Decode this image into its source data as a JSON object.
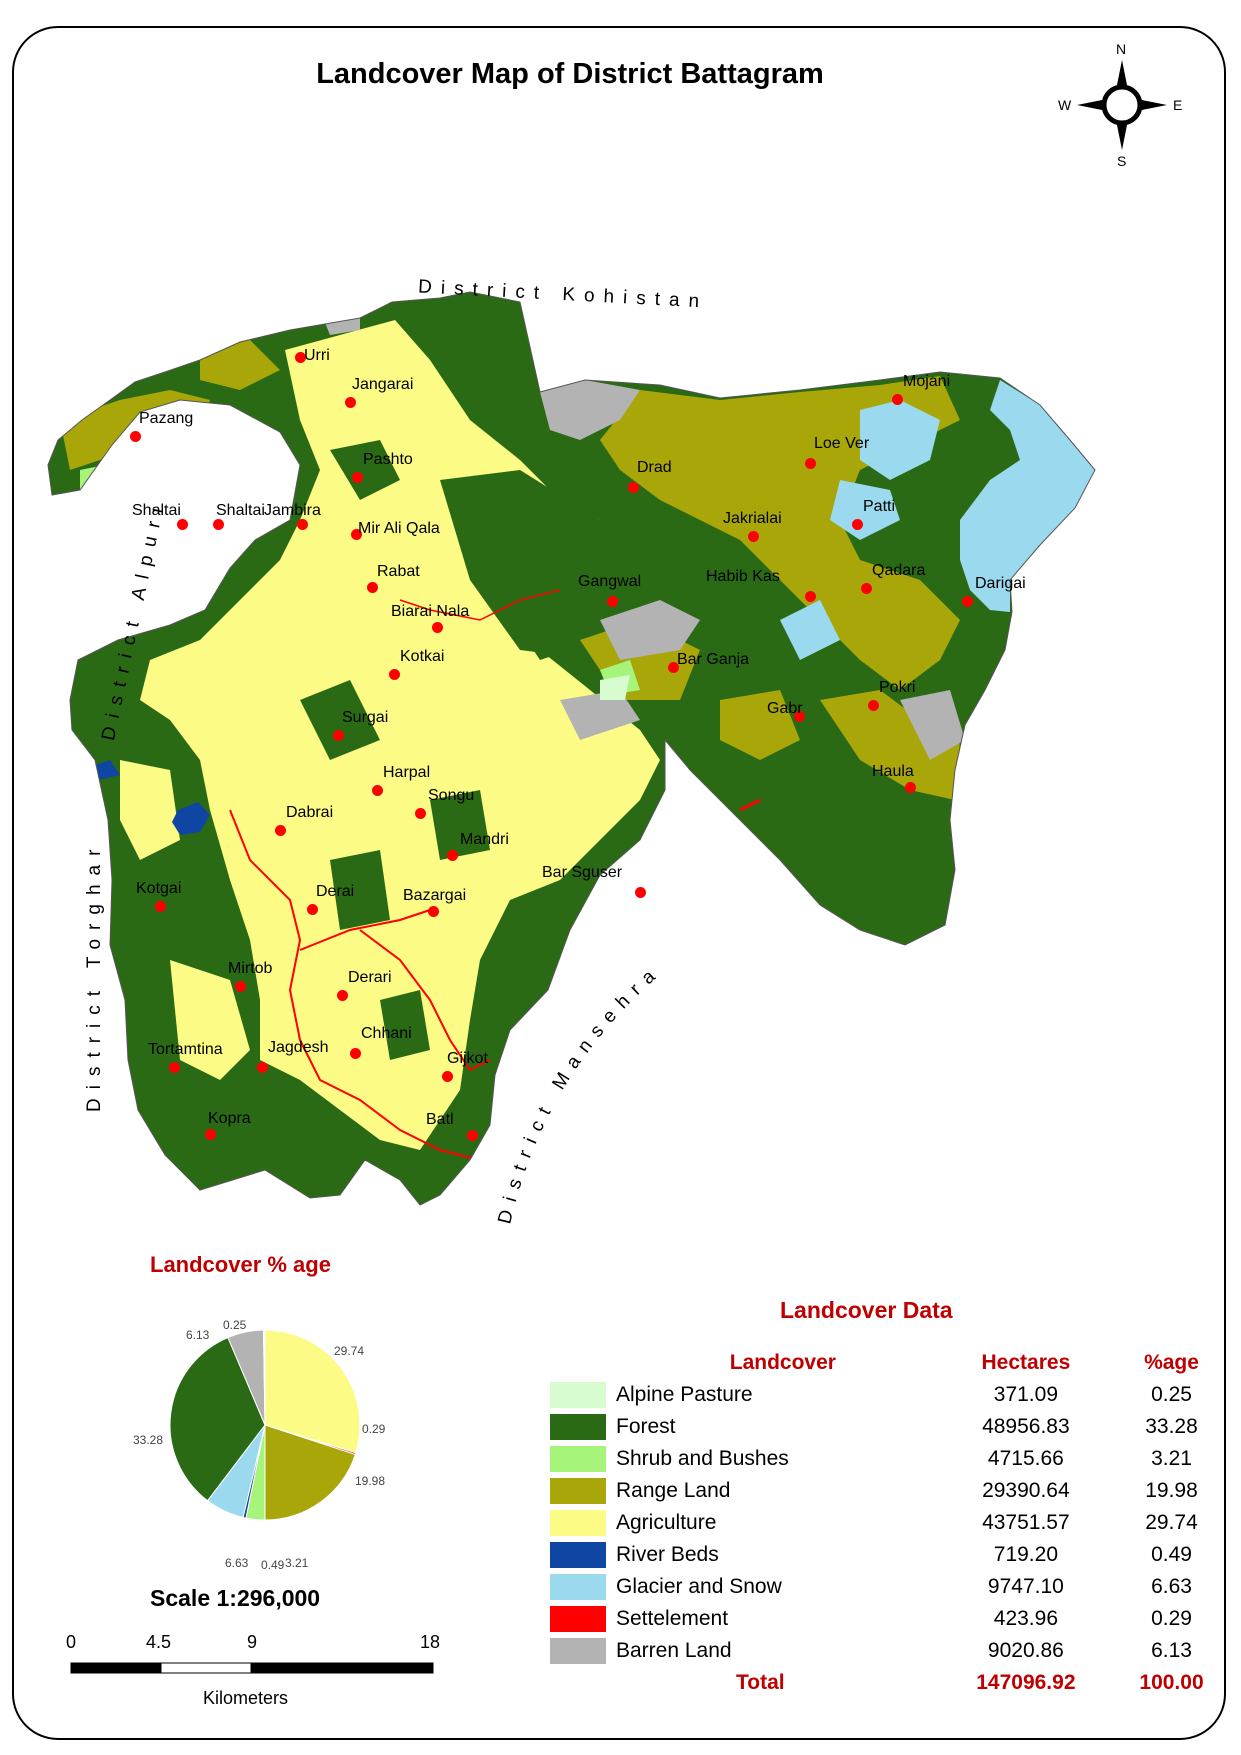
{
  "title": "Landcover Map of District Battagram",
  "compass": {
    "n": "N",
    "s": "S",
    "e": "E",
    "w": "W"
  },
  "districts": {
    "kohistan": "District Kohistan",
    "alpuri": "District Alpuri",
    "torghar": "District Torghar",
    "mansehra": "District Mansehra"
  },
  "places": [
    "Urri",
    "Jangarai",
    "Pazang",
    "Pashto",
    "Shaltai",
    "Shaltai",
    "Jambira",
    "Mir Ali Qala",
    "Rabat",
    "Drad",
    "Loe Ver",
    "Mojani",
    "Jakrialai",
    "Patti",
    "Gangwal",
    "Habib Kas",
    "Qadara",
    "Darigai",
    "Biarai Nala",
    "Kotkai",
    "Bar Ganja",
    "Surgai",
    "Pokri",
    "Gabr",
    "Harpal",
    "Songu",
    "Haula",
    "Dabrai",
    "Mandri",
    "Kotgai",
    "Bar Sguser",
    "Derai",
    "Bazargai",
    "Mirtob",
    "Derari",
    "Tortamtina",
    "Jagdesh",
    "Chhani",
    "Gijkot",
    "Batl",
    "Kopra"
  ],
  "colors": {
    "alpine_pasture": "#d6fcd0",
    "forest": "#2b6a14",
    "shrub": "#a6f57a",
    "range": "#a9a60a",
    "agriculture": "#fbfb86",
    "river": "#0f46a4",
    "glacier": "#9ad9ee",
    "settlement": "#ff0000",
    "barren": "#b3b3b3",
    "place_marker": "#ff0000"
  },
  "pie": {
    "title": "Landcover % age",
    "labels": [
      "6.13",
      "0.25",
      "29.74",
      "0.29",
      "19.98",
      "33.28",
      "6.63",
      "0.49",
      "3.21"
    ]
  },
  "scale": {
    "title": "Scale 1:296,000",
    "ticks": [
      "0",
      "4.5",
      "9",
      "18"
    ],
    "units": "Kilometers"
  },
  "table": {
    "title": "Landcover Data",
    "headers": [
      "Landcover",
      "Hectares",
      "%age"
    ],
    "rows": [
      {
        "name": "Alpine Pasture",
        "hectares": "371.09",
        "pct": "0.25",
        "color": "#d6fcd0"
      },
      {
        "name": "Forest",
        "hectares": "48956.83",
        "pct": "33.28",
        "color": "#2b6a14"
      },
      {
        "name": "Shrub and Bushes",
        "hectares": "4715.66",
        "pct": "3.21",
        "color": "#a6f57a"
      },
      {
        "name": "Range Land",
        "hectares": "29390.64",
        "pct": "19.98",
        "color": "#a9a60a"
      },
      {
        "name": "Agriculture",
        "hectares": "43751.57",
        "pct": "29.74",
        "color": "#fbfb86"
      },
      {
        "name": "River Beds",
        "hectares": "719.20",
        "pct": "0.49",
        "color": "#0f46a4"
      },
      {
        "name": "Glacier and Snow",
        "hectares": "9747.10",
        "pct": "6.63",
        "color": "#9ad9ee"
      },
      {
        "name": "Settelement",
        "hectares": "423.96",
        "pct": "0.29",
        "color": "#ff0000"
      },
      {
        "name": "Barren Land",
        "hectares": "9020.86",
        "pct": "6.13",
        "color": "#b3b3b3"
      }
    ],
    "total": {
      "name": "Total",
      "hectares": "147096.92",
      "pct": "100.00"
    }
  },
  "chart_data": {
    "type": "pie",
    "title": "Landcover % age",
    "slices": [
      {
        "name": "Agriculture",
        "value": 29.74,
        "color": "#fbfb86"
      },
      {
        "name": "Settelement",
        "value": 0.29,
        "color": "#ff0000"
      },
      {
        "name": "Range Land",
        "value": 19.98,
        "color": "#a9a60a"
      },
      {
        "name": "Shrub and Bushes",
        "value": 3.21,
        "color": "#a6f57a"
      },
      {
        "name": "River Beds",
        "value": 0.49,
        "color": "#0f46a4"
      },
      {
        "name": "Glacier and Snow",
        "value": 6.63,
        "color": "#9ad9ee"
      },
      {
        "name": "Forest",
        "value": 33.28,
        "color": "#2b6a14"
      },
      {
        "name": "Barren Land",
        "value": 6.13,
        "color": "#b3b3b3"
      },
      {
        "name": "Alpine Pasture",
        "value": 0.25,
        "color": "#d6fcd0"
      }
    ]
  }
}
